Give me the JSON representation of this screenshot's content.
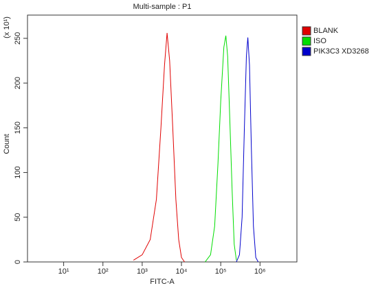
{
  "chart_data": {
    "type": "line",
    "title": "Multi-sample : P1",
    "xlabel": "FITC-A",
    "ylabel": "Count",
    "yunit": "(x 10¹)",
    "xscale": "log",
    "xlim": [
      1.2,
      8700000
    ],
    "ylim": [
      0,
      276
    ],
    "xticks": [
      {
        "value": 10,
        "label": "10¹"
      },
      {
        "value": 100,
        "label": "10²"
      },
      {
        "value": 1000,
        "label": "10³"
      },
      {
        "value": 10000,
        "label": "10⁴"
      },
      {
        "value": 100000,
        "label": "10⁵"
      },
      {
        "value": 1000000,
        "label": "10⁶"
      }
    ],
    "yticks": [
      0,
      50,
      100,
      150,
      200,
      250
    ],
    "legend": "right",
    "series": [
      {
        "name": "BLANK",
        "color": "#e00000",
        "x": [
          600,
          1000,
          1600,
          2300,
          3000,
          3700,
          4300,
          5000,
          6000,
          7200,
          8500,
          10000,
          12000
        ],
        "values": [
          2,
          8,
          25,
          70,
          150,
          220,
          256,
          225,
          150,
          70,
          25,
          5,
          0
        ]
      },
      {
        "name": "ISO",
        "color": "#00dd00",
        "x": [
          40000,
          55000,
          70000,
          85000,
          100000,
          120000,
          135000,
          150000,
          170000,
          195000,
          220000,
          250000
        ],
        "values": [
          0,
          8,
          40,
          110,
          180,
          240,
          253,
          230,
          160,
          80,
          20,
          2
        ]
      },
      {
        "name": "PIK3C3 XD3268",
        "color": "#0000cc",
        "x": [
          250000,
          300000,
          350000,
          400000,
          450000,
          490000,
          540000,
          600000,
          680000,
          780000,
          900000
        ],
        "values": [
          0,
          8,
          50,
          150,
          230,
          251,
          220,
          130,
          40,
          5,
          0
        ]
      }
    ]
  }
}
